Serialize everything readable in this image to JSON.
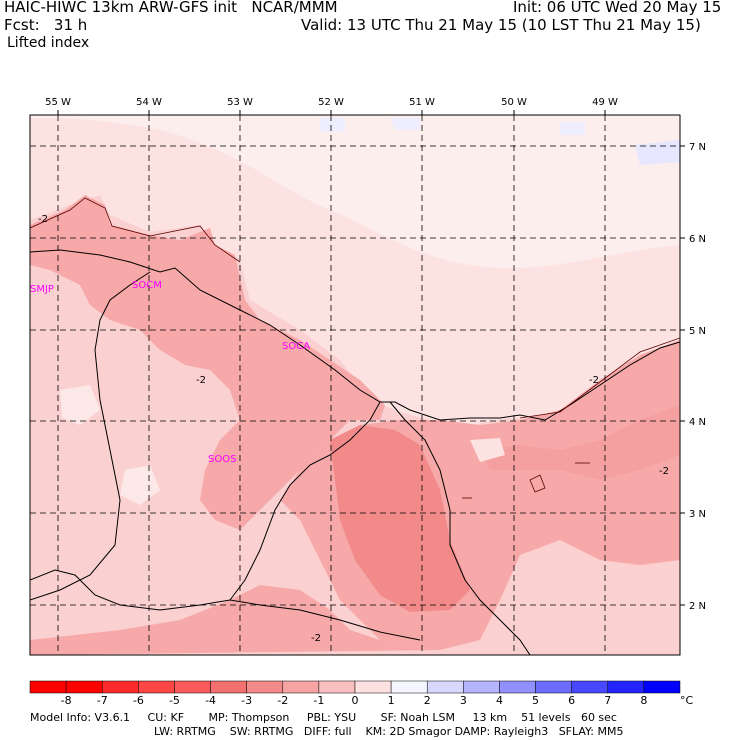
{
  "header": {
    "title_left": "HAIC-HIWC 13km ARW-GFS init   NCAR/MMM",
    "init": "Init: 06 UTC Wed 20 May 15",
    "fcst_left": "Fcst:   31 h",
    "valid": "Valid: 13 UTC Thu 21 May 15 (10 LST Thu 21 May 15)",
    "field": "Lifted index"
  },
  "map": {
    "lon_labels": [
      "55 W",
      "54 W",
      "53 W",
      "52 W",
      "51 W",
      "50 W",
      "49 W"
    ],
    "lat_labels": [
      "7 N",
      "6 N",
      "5 N",
      "4 N",
      "3 N",
      "2 N"
    ],
    "stations": [
      "SMJP",
      "SOCM",
      "SOCA",
      "SOOS"
    ],
    "contour_labels": [
      "-2",
      "-2",
      "-2",
      "-2",
      "-2"
    ]
  },
  "colorbar": {
    "ticks": [
      "-8",
      "-7",
      "-6",
      "-5",
      "-4",
      "-3",
      "-2",
      "-1",
      "0",
      "1",
      "2",
      "3",
      "4",
      "5",
      "6",
      "7",
      "8"
    ],
    "unit": "°C",
    "colors": [
      "#ff0000",
      "#ff2a2a",
      "#ff4646",
      "#fb5a5a",
      "#f27070",
      "#f28a8a",
      "#f5a3a3",
      "#fac0c0",
      "#fde0e0",
      "#f5f5ff",
      "#d8d8ff",
      "#b4b4ff",
      "#9090ff",
      "#6c6cff",
      "#4848ff",
      "#2424ff",
      "#0000ff"
    ]
  },
  "footer": {
    "line1": "Model Info: V3.6.1     CU: KF       MP: Thompson     PBL: YSU       SF: Noah LSM     13 km    51 levels   60 sec",
    "line2": "LW: RRTMG    SW: RRTMG   DIFF: full    KM: 2D Smagor DAMP: Rayleigh3   SFLAY: MM5"
  }
}
